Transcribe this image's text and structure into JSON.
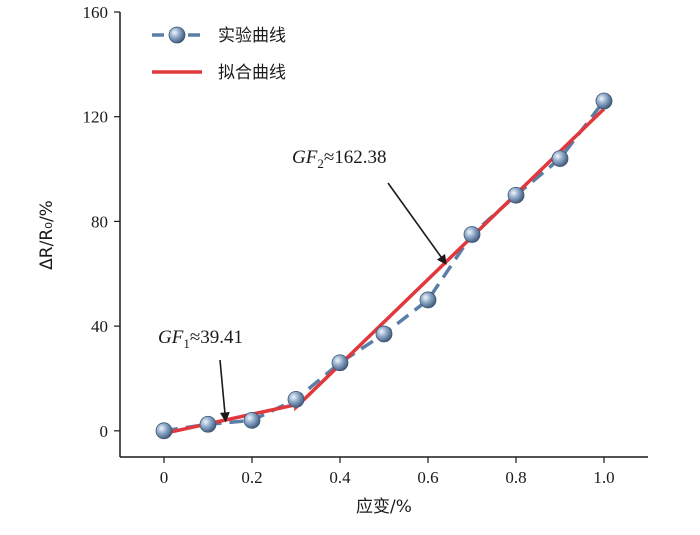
{
  "chart_data": {
    "type": "line",
    "xlabel": "应变/%",
    "ylabel": "ΔR/R₀/%",
    "xlim": [
      -0.1,
      1.1
    ],
    "ylim": [
      -10,
      160
    ],
    "xticks": [
      0,
      0.2,
      0.4,
      0.6,
      0.8,
      1.0
    ],
    "xtick_labels": [
      "0",
      "0.2",
      "0.4",
      "0.6",
      "0.8",
      "1.0"
    ],
    "yticks": [
      0,
      40,
      80,
      120,
      160
    ],
    "ytick_labels": [
      "0",
      "40",
      "80",
      "120",
      "160"
    ],
    "legend_position": "top-left",
    "series": [
      {
        "name": "实验曲线",
        "style": "dashed-with-markers",
        "color": "#5a7ea6",
        "x": [
          0,
          0.1,
          0.2,
          0.3,
          0.4,
          0.5,
          0.6,
          0.7,
          0.8,
          0.9,
          1.0
        ],
        "y": [
          0,
          2.5,
          4,
          12,
          26,
          37,
          50,
          75,
          90,
          104,
          126
        ]
      },
      {
        "name": "拟合曲线",
        "style": "solid",
        "color": "#e0383c",
        "x": [
          0,
          0.3,
          0.3,
          1.0
        ],
        "y": [
          -1,
          10,
          9,
          123
        ]
      }
    ],
    "annotations": [
      {
        "gf": "GF",
        "sub": "1",
        "rest": "≈39.41",
        "arrow_to": [
          0.14,
          4
        ]
      },
      {
        "gf": "GF",
        "sub": "2",
        "rest": "≈162.38",
        "arrow_to": [
          0.64,
          64
        ]
      }
    ]
  }
}
